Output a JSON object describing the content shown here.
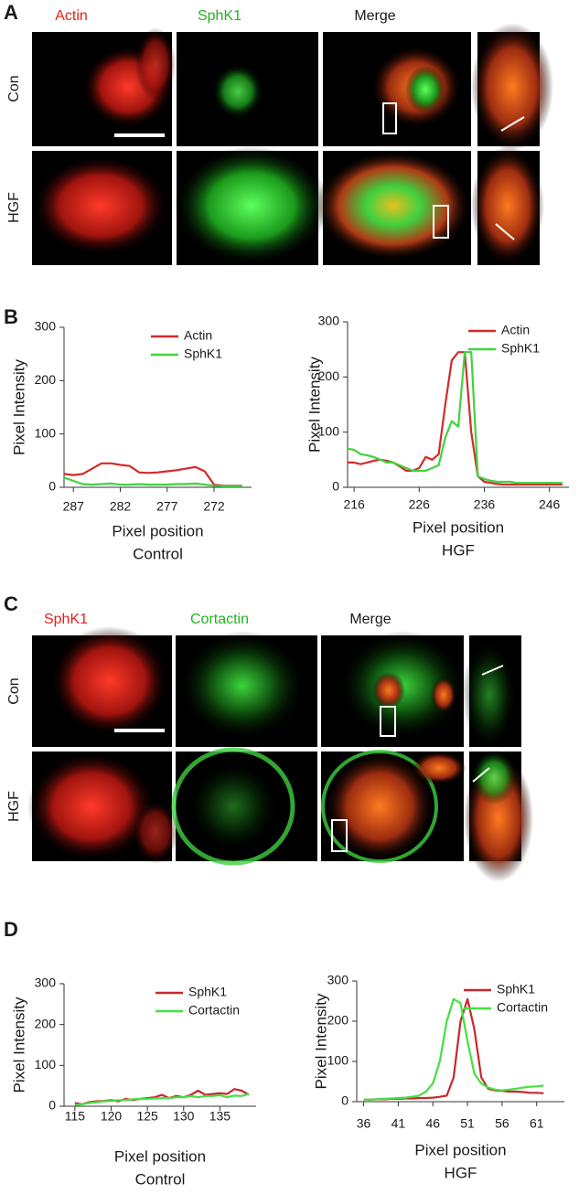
{
  "figure": {
    "panels": [
      {
        "letter": "A",
        "columns": [
          "Actin",
          "SphK1",
          "Merge"
        ],
        "column_colors": [
          "#e3201b",
          "#22b322",
          "#1a1a1a"
        ],
        "rows": [
          "Con",
          "HGF"
        ]
      },
      {
        "letter": "B"
      },
      {
        "letter": "C",
        "columns": [
          "SphK1",
          "Cortactin",
          "Merge"
        ],
        "column_colors": [
          "#e3201b",
          "#22b322",
          "#1a1a1a"
        ],
        "rows": [
          "Con",
          "HGF"
        ]
      },
      {
        "letter": "D"
      }
    ]
  },
  "chart_data": [
    {
      "type": "line",
      "ylabel": "Pixel Intensity",
      "xlabel": "Pixel position",
      "subtitle": "Control",
      "x": [
        288,
        287,
        286,
        285,
        284,
        283,
        282,
        281,
        280,
        279,
        278,
        277,
        276,
        275,
        274,
        273,
        272,
        271,
        270,
        269
      ],
      "xlim": [
        288,
        268
      ],
      "xticks": [
        287,
        282,
        277,
        272
      ],
      "ylim": [
        0,
        300
      ],
      "yticks": [
        0,
        100,
        200,
        300
      ],
      "legend": "upper right",
      "series": [
        {
          "name": "Actin",
          "color": "#d42a2a",
          "values": [
            25,
            23,
            25,
            35,
            45,
            45,
            42,
            40,
            28,
            27,
            28,
            30,
            32,
            35,
            38,
            30,
            5,
            3,
            3,
            3
          ]
        },
        {
          "name": "SphK1",
          "color": "#3ed43e",
          "values": [
            18,
            12,
            6,
            5,
            6,
            7,
            5,
            5,
            6,
            5,
            5,
            5,
            6,
            6,
            7,
            5,
            3,
            2,
            2,
            2
          ]
        }
      ]
    },
    {
      "type": "line",
      "ylabel": "Pixel Intensity",
      "xlabel": "Pixel position",
      "subtitle": "HGF",
      "x": [
        215,
        216,
        217,
        218,
        219,
        220,
        221,
        222,
        223,
        224,
        225,
        226,
        227,
        228,
        229,
        230,
        231,
        232,
        233,
        234,
        235,
        236,
        237,
        238,
        239,
        240,
        241,
        242,
        243,
        244,
        245,
        246,
        247,
        248
      ],
      "xlim": [
        215,
        249
      ],
      "xticks": [
        216,
        226,
        236,
        246
      ],
      "ylim": [
        0,
        300
      ],
      "yticks": [
        0,
        100,
        200,
        300
      ],
      "legend": "upper right",
      "series": [
        {
          "name": "Actin",
          "color": "#d42a2a",
          "values": [
            45,
            45,
            42,
            45,
            48,
            50,
            48,
            45,
            38,
            30,
            30,
            35,
            55,
            50,
            60,
            150,
            230,
            245,
            245,
            100,
            20,
            10,
            8,
            6,
            5,
            5,
            5,
            5,
            5,
            5,
            5,
            5,
            5,
            5
          ]
        },
        {
          "name": "SphK1",
          "color": "#3ed43e",
          "values": [
            70,
            68,
            60,
            58,
            55,
            50,
            45,
            45,
            40,
            35,
            30,
            30,
            30,
            35,
            40,
            90,
            120,
            110,
            245,
            245,
            20,
            15,
            12,
            10,
            10,
            10,
            8,
            8,
            8,
            8,
            8,
            8,
            8,
            8
          ]
        }
      ]
    },
    {
      "type": "line",
      "ylabel": "Pixel Intensity",
      "xlabel": "Pixel position",
      "subtitle": "Control",
      "x": [
        115,
        116,
        117,
        118,
        119,
        120,
        121,
        122,
        123,
        124,
        125,
        126,
        127,
        128,
        129,
        130,
        131,
        132,
        133,
        134,
        135,
        136,
        137,
        138,
        139
      ],
      "xlim": [
        113.5,
        140
      ],
      "xticks": [
        115,
        120,
        125,
        130,
        135
      ],
      "ylim": [
        0,
        300
      ],
      "yticks": [
        0,
        100,
        200,
        300
      ],
      "legend": "upper right",
      "series": [
        {
          "name": "SphK1",
          "color": "#c8282a",
          "values": [
            8,
            5,
            10,
            12,
            13,
            15,
            12,
            18,
            15,
            18,
            20,
            22,
            28,
            20,
            25,
            22,
            28,
            38,
            28,
            30,
            32,
            30,
            42,
            38,
            28
          ]
        },
        {
          "name": "Cortactin",
          "color": "#44e044",
          "values": [
            3,
            5,
            8,
            10,
            12,
            13,
            15,
            15,
            17,
            18,
            18,
            19,
            20,
            20,
            22,
            22,
            25,
            22,
            25,
            25,
            27,
            22,
            26,
            25,
            30
          ]
        }
      ]
    },
    {
      "type": "line",
      "ylabel": "Pixel Intensity",
      "xlabel": "Pixel position",
      "subtitle": "HGF",
      "x": [
        36,
        37,
        38,
        39,
        40,
        41,
        42,
        43,
        44,
        45,
        46,
        47,
        48,
        49,
        50,
        51,
        52,
        53,
        54,
        55,
        56,
        57,
        58,
        59,
        60,
        61,
        62
      ],
      "xlim": [
        35,
        65
      ],
      "xticks": [
        36,
        41,
        46,
        51,
        56,
        61
      ],
      "ylim": [
        0,
        300
      ],
      "yticks": [
        0,
        100,
        200,
        300
      ],
      "legend": "upper right",
      "series": [
        {
          "name": "SphK1",
          "color": "#c8282a",
          "values": [
            5,
            5,
            6,
            6,
            7,
            7,
            8,
            8,
            9,
            9,
            10,
            12,
            15,
            60,
            200,
            255,
            180,
            60,
            32,
            28,
            27,
            25,
            25,
            24,
            22,
            22,
            21
          ]
        },
        {
          "name": "Cortactin",
          "color": "#44e044",
          "values": [
            5,
            5,
            6,
            7,
            8,
            9,
            10,
            12,
            15,
            25,
            45,
            100,
            200,
            255,
            245,
            150,
            70,
            45,
            35,
            30,
            28,
            30,
            32,
            35,
            37,
            38,
            40
          ]
        }
      ]
    }
  ]
}
